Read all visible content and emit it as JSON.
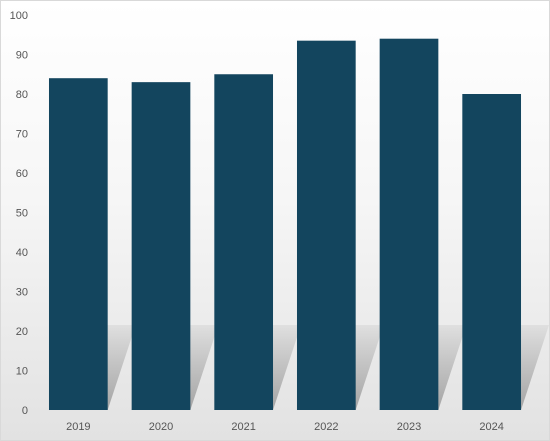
{
  "chart_data": {
    "type": "bar",
    "categories": [
      "2019",
      "2020",
      "2021",
      "2022",
      "2023",
      "2024"
    ],
    "values": [
      84,
      83,
      85,
      93.5,
      94,
      80
    ],
    "ylim": [
      0,
      100
    ],
    "yticks": [
      0,
      10,
      20,
      30,
      40,
      50,
      60,
      70,
      80,
      90,
      100
    ],
    "grid": false,
    "legend": "none",
    "bar_color": "#13455e",
    "shadow_color": "#9a9a9a"
  }
}
